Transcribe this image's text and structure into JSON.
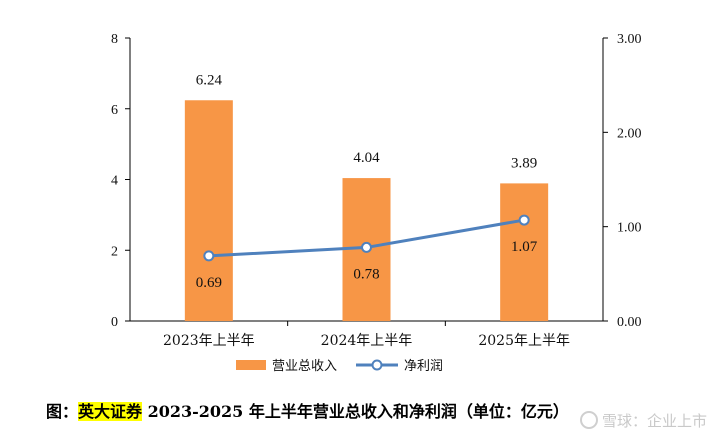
{
  "chart_data": {
    "type": "bar",
    "categories": [
      "2023年上半年",
      "2024年上半年",
      "2025年上半年"
    ],
    "series": [
      {
        "name": "营业总收入",
        "type": "bar",
        "axis": "left",
        "values": [
          6.24,
          4.04,
          3.89
        ],
        "labels": [
          "6.24",
          "4.04",
          "3.89"
        ],
        "color": "#f79646"
      },
      {
        "name": "净利润",
        "type": "line",
        "axis": "right",
        "values": [
          0.69,
          0.78,
          1.07
        ],
        "labels": [
          "0.69",
          "0.78",
          "1.07"
        ],
        "color": "#4f81bd"
      }
    ],
    "y_left": {
      "ylim": [
        0,
        8
      ],
      "ticks": [
        "0",
        "2",
        "4",
        "6",
        "8"
      ]
    },
    "y_right": {
      "ylim": [
        0,
        3
      ],
      "ticks": [
        "0.00",
        "1.00",
        "2.00",
        "3.00"
      ]
    },
    "legend": "bottom"
  },
  "caption": {
    "prefix": "图：",
    "highlight": "英大证券",
    "rest": " 2023-2025 年上半年营业总收入和净利润（单位：亿元）"
  },
  "watermark": {
    "text": "雪球：企业上市"
  }
}
